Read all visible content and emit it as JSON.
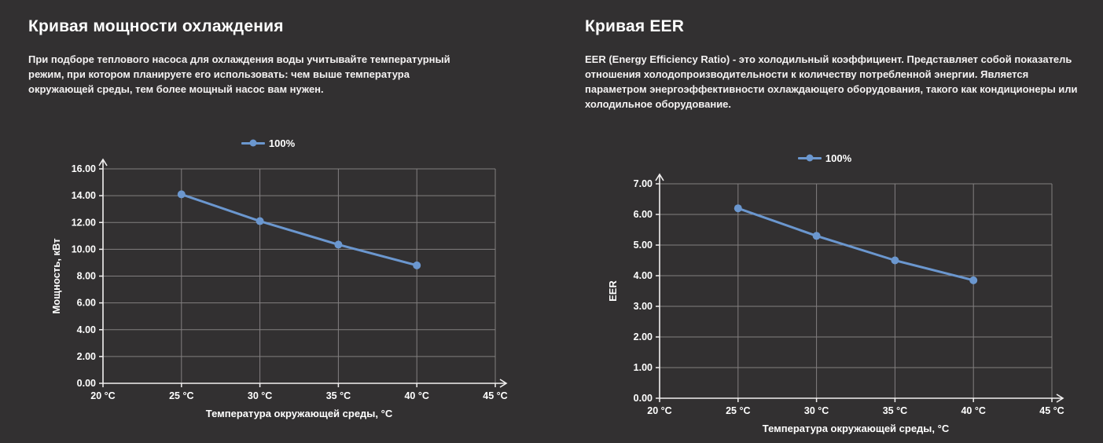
{
  "colors": {
    "background": "#323031",
    "text": "#ffffff",
    "grid": "#827f80",
    "axis": "#f2f0f0",
    "line": "#6b97cf"
  },
  "sections": [
    {
      "title": "Кривая мощности охлаждения",
      "description": "При подборе теплового насоса для охлаждения воды учитывайте температурный режим, при котором планируете его использовать: чем выше температура окружающей среды, тем более мощный насос вам нужен."
    },
    {
      "title": "Кривая EER",
      "description": "EER (Energy Efficiency Ratio) - это холодильный коэффициент. Представляет собой показатель отношения холодопроизводительности к количеству потребленной энергии. Является параметром энергоэффективности охлаждающего оборудования, такого как кондиционеры или холодильное оборудование."
    }
  ],
  "chart_data": [
    {
      "type": "line",
      "title": "Кривая мощности охлаждения",
      "x": [
        25,
        30,
        35,
        40
      ],
      "series": [
        {
          "name": "100%",
          "values": [
            14.1,
            12.1,
            10.35,
            8.8
          ]
        }
      ],
      "xlabel": "Температура окружающей среды, °C",
      "ylabel": "Мощность, кВт",
      "xlim": [
        20,
        45
      ],
      "ylim": [
        0,
        16
      ],
      "ytick_step": 2,
      "xticks": [
        20,
        25,
        30,
        35,
        40,
        45
      ],
      "xtick_labels": [
        "20 °C",
        "25 °C",
        "30 °C",
        "35 °C",
        "40 °C",
        "45 °C"
      ],
      "ytick_labels": [
        "0.00",
        "2.00",
        "4.00",
        "6.00",
        "8.00",
        "10.00",
        "12.00",
        "14.00",
        "16.00"
      ],
      "grid": true,
      "legend_position": "top"
    },
    {
      "type": "line",
      "title": "Кривая EER",
      "x": [
        25,
        30,
        35,
        40
      ],
      "series": [
        {
          "name": "100%",
          "values": [
            6.2,
            5.3,
            4.5,
            3.85
          ]
        }
      ],
      "xlabel": "Температура окружающей среды, °C",
      "ylabel": "EER",
      "xlim": [
        20,
        45
      ],
      "ylim": [
        0,
        7
      ],
      "ytick_step": 1,
      "xticks": [
        20,
        25,
        30,
        35,
        40,
        45
      ],
      "xtick_labels": [
        "20 °C",
        "25 °C",
        "30 °C",
        "35 °C",
        "40 °C",
        "45 °C"
      ],
      "ytick_labels": [
        "0.00",
        "1.00",
        "2.00",
        "3.00",
        "4.00",
        "5.00",
        "6.00",
        "7.00"
      ],
      "grid": true,
      "legend_position": "top"
    }
  ]
}
